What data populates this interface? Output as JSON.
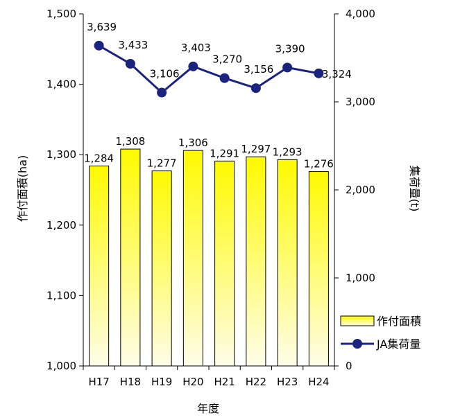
{
  "chart_data": {
    "type": "bar+line",
    "categories": [
      "H17",
      "H18",
      "H19",
      "H20",
      "H21",
      "H22",
      "H23",
      "H24"
    ],
    "series": [
      {
        "name": "作付面積",
        "type": "bar",
        "axis": "left",
        "values": [
          1284,
          1308,
          1277,
          1306,
          1291,
          1297,
          1293,
          1276
        ],
        "labels": [
          "1,284",
          "1,308",
          "1,277",
          "1,306",
          "1,291",
          "1,297",
          "1,293",
          "1,276"
        ],
        "color_top": "#fffa00",
        "color_bottom": "#fffde8"
      },
      {
        "name": "JA集荷量",
        "type": "line",
        "axis": "right",
        "values": [
          3639,
          3433,
          3106,
          3403,
          3270,
          3156,
          3390,
          3324
        ],
        "labels": [
          "3,639",
          "3,433",
          "3,106",
          "3,403",
          "3,270",
          "3,156",
          "3,390",
          "3,324"
        ],
        "color": "#1a237e"
      }
    ],
    "xlabel": "年度",
    "ylabel_left": "作付面積(ha)",
    "ylabel_right": "集荷量(t)",
    "ylim_left": [
      1000,
      1500
    ],
    "ylim_right": [
      0,
      4000
    ],
    "yticks_left": [
      1000,
      1100,
      1200,
      1300,
      1400,
      1500
    ],
    "yticks_left_labels": [
      "1,000",
      "1,100",
      "1,200",
      "1,300",
      "1,400",
      "1,500"
    ],
    "yticks_right": [
      0,
      1000,
      2000,
      3000,
      4000
    ],
    "yticks_right_labels": [
      "0",
      "1,000",
      "2,000",
      "3,000",
      "4,000"
    ],
    "grid": false,
    "legend": "bottom-right"
  }
}
